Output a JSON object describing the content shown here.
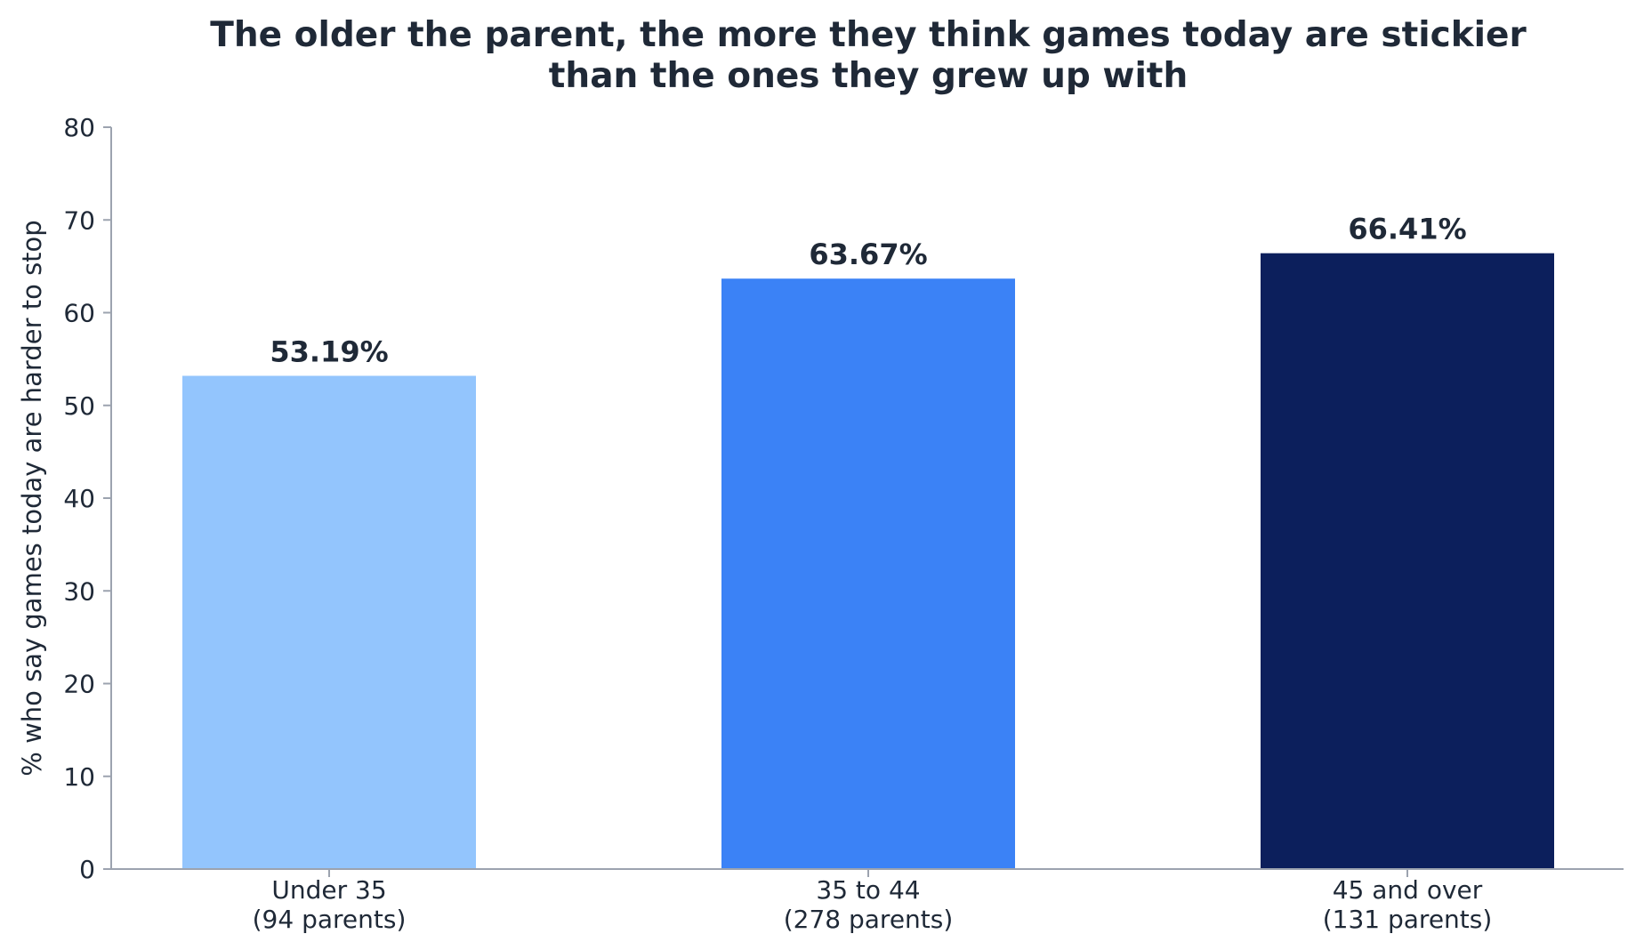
{
  "chart_data": {
    "type": "bar",
    "title": [
      "The older the parent, the more they think games today are stickier",
      "than the ones they grew up with"
    ],
    "xlabel": "",
    "ylabel": "% who say games today are harder to stop",
    "ylim": [
      0,
      80
    ],
    "yticks": [
      0,
      10,
      20,
      30,
      40,
      50,
      60,
      70,
      80
    ],
    "categories": [
      [
        "Under 35",
        "(94 parents)"
      ],
      [
        "35 to 44",
        "(278 parents)"
      ],
      [
        "45 and over",
        "(131 parents)"
      ]
    ],
    "values": [
      53.19,
      63.67,
      66.41
    ],
    "data_labels": [
      "53.19%",
      "63.67%",
      "66.41%"
    ],
    "colors": [
      "#93c5fd",
      "#3b82f6",
      "#0c1f5c"
    ],
    "grid": false,
    "legend": "none"
  },
  "colors": {
    "text": "#1f2937",
    "axis": "#9ca3af",
    "background": "#ffffff"
  }
}
